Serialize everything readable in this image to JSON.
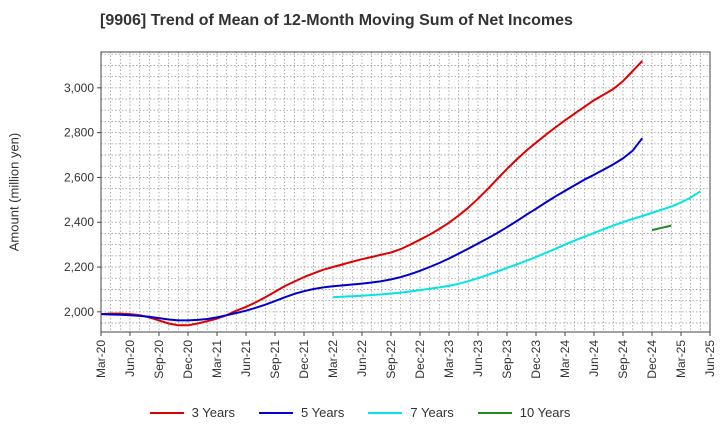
{
  "chart_data": {
    "type": "line",
    "title": "[9906]  Trend of Mean of 12-Month Moving Sum of Net Incomes",
    "xlabel": "",
    "ylabel": "Amount (million yen)",
    "x_tick_labels": [
      "Mar-20",
      "Jun-20",
      "Sep-20",
      "Dec-20",
      "Mar-21",
      "Jun-21",
      "Sep-21",
      "Dec-21",
      "Mar-22",
      "Jun-22",
      "Sep-22",
      "Dec-22",
      "Mar-23",
      "Jun-23",
      "Sep-23",
      "Dec-23",
      "Mar-24",
      "Jun-24",
      "Sep-24",
      "Dec-24",
      "Mar-25",
      "Jun-25"
    ],
    "y_ticks": [
      2000,
      2200,
      2400,
      2600,
      2800,
      3000
    ],
    "y_tick_labels": [
      "2,000",
      "2,200",
      "2,400",
      "2,600",
      "2,800",
      "3,000"
    ],
    "ylim": [
      1910,
      3160
    ],
    "grid": true,
    "legend_position": "bottom",
    "series": [
      {
        "name": "3 Years",
        "color": "#dd0000",
        "start": "Mar-20",
        "values": [
          1990,
          1992,
          1992,
          1990,
          1985,
          1975,
          1962,
          1948,
          1940,
          1940,
          1948,
          1958,
          1970,
          1985,
          2005,
          2022,
          2042,
          2065,
          2090,
          2115,
          2135,
          2155,
          2172,
          2188,
          2200,
          2212,
          2224,
          2235,
          2245,
          2255,
          2265,
          2280,
          2300,
          2322,
          2345,
          2370,
          2398,
          2430,
          2465,
          2505,
          2548,
          2593,
          2638,
          2680,
          2720,
          2755,
          2790,
          2823,
          2855,
          2885,
          2915,
          2945,
          2970,
          2995,
          3030,
          3075,
          3120
        ]
      },
      {
        "name": "5 Years",
        "color": "#0000cc",
        "start": "Mar-20",
        "values": [
          1990,
          1988,
          1987,
          1985,
          1982,
          1978,
          1972,
          1966,
          1962,
          1962,
          1964,
          1968,
          1975,
          1985,
          1995,
          2005,
          2018,
          2032,
          2048,
          2065,
          2080,
          2092,
          2102,
          2109,
          2114,
          2118,
          2122,
          2126,
          2131,
          2137,
          2145,
          2155,
          2168,
          2183,
          2200,
          2218,
          2238,
          2260,
          2282,
          2305,
          2328,
          2352,
          2378,
          2405,
          2433,
          2460,
          2488,
          2515,
          2540,
          2565,
          2590,
          2612,
          2635,
          2658,
          2685,
          2720,
          2775
        ]
      },
      {
        "name": "7 Years",
        "color": "#00e5e5",
        "start": "Mar-22",
        "values": [
          2065,
          2068,
          2070,
          2072,
          2075,
          2078,
          2082,
          2086,
          2091,
          2097,
          2103,
          2109,
          2116,
          2125,
          2137,
          2150,
          2165,
          2180,
          2196,
          2212,
          2228,
          2245,
          2263,
          2281,
          2300,
          2318,
          2335,
          2352,
          2369,
          2385,
          2400,
          2415,
          2428,
          2442,
          2456,
          2470,
          2488,
          2510,
          2538
        ]
      },
      {
        "name": "10 Years",
        "color": "#228822",
        "start": "Dec-24",
        "values": [
          2365,
          2375,
          2385
        ]
      }
    ]
  }
}
